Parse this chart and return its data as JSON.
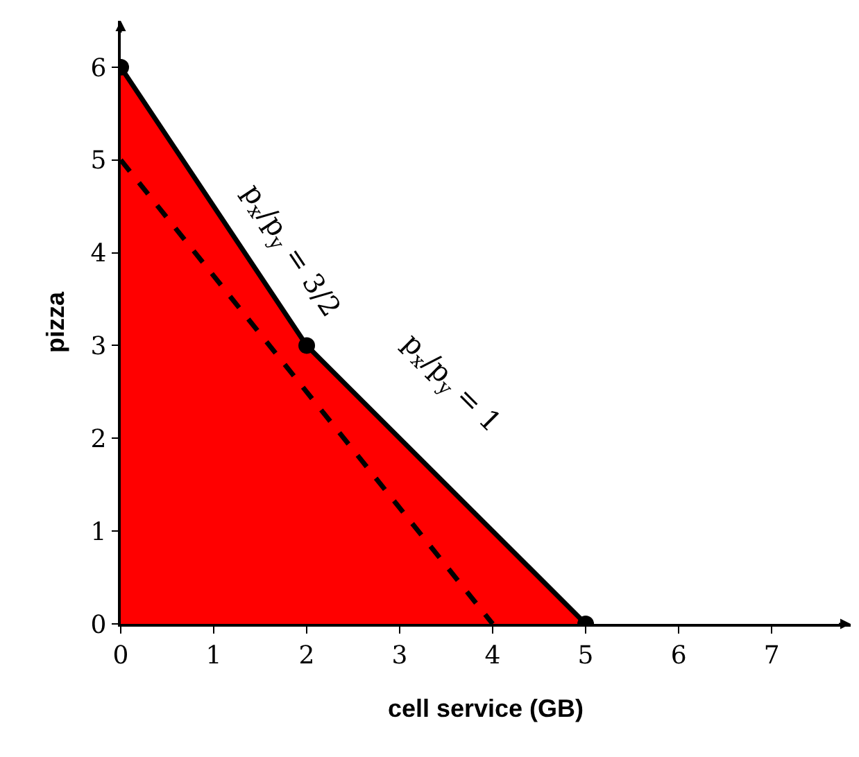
{
  "chart_data": {
    "type": "line",
    "xlabel": "cell service (GB)",
    "ylabel": "pizza",
    "xlim": [
      0,
      7.85
    ],
    "ylim": [
      0,
      6.5
    ],
    "xticks": [
      0,
      1,
      2,
      3,
      4,
      5,
      6,
      7
    ],
    "yticks": [
      0,
      1,
      2,
      3,
      4,
      5,
      6
    ],
    "series": [
      {
        "type": "area",
        "x": [
          0,
          2,
          5
        ],
        "values": [
          6,
          3,
          0
        ],
        "color": "#ff0000",
        "marker": "circle",
        "line_style": "solid"
      },
      {
        "x": [
          0,
          4
        ],
        "values": [
          5,
          0
        ],
        "color": "#000000",
        "line_style": "dashed"
      }
    ],
    "annotations": [
      "p$_{x}$/p$_{y}$ = 3/2",
      "p$_{x}$/p$_{y}$ = 1"
    ]
  }
}
